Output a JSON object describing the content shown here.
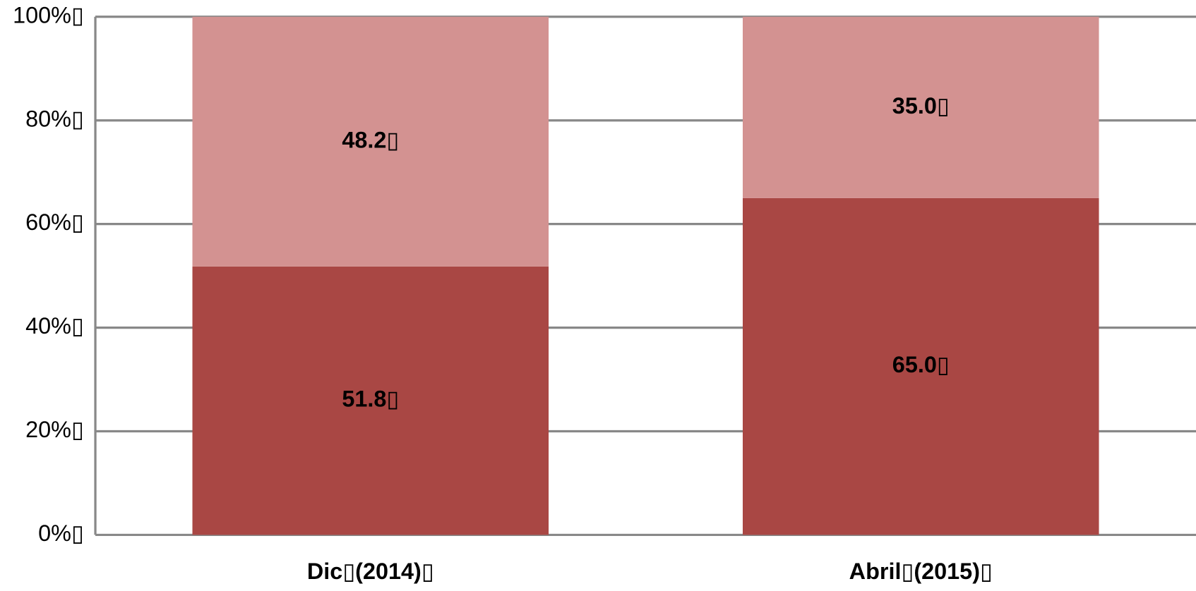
{
  "chart_data": {
    "type": "stacked_bar",
    "categories": [
      "Dic▯(2014)▯",
      "Abril▯(2015)▯"
    ],
    "series": [
      {
        "color": "#a94744",
        "values": [
          51.8,
          65.0
        ],
        "value_labels": [
          "51.8▯",
          "65.0▯"
        ]
      },
      {
        "color": "#d39291",
        "values": [
          48.2,
          35.0
        ],
        "value_labels": [
          "48.2▯",
          "35.0▯"
        ]
      }
    ],
    "ylim": [
      0,
      100
    ],
    "yticks": [
      {
        "value": 0,
        "label": "0%▯"
      },
      {
        "value": 20,
        "label": "20%▯"
      },
      {
        "value": 40,
        "label": "40%▯"
      },
      {
        "value": 60,
        "label": "60%▯"
      },
      {
        "value": 80,
        "label": "80%▯"
      },
      {
        "value": 100,
        "label": "100%▯"
      }
    ],
    "grid": true
  }
}
